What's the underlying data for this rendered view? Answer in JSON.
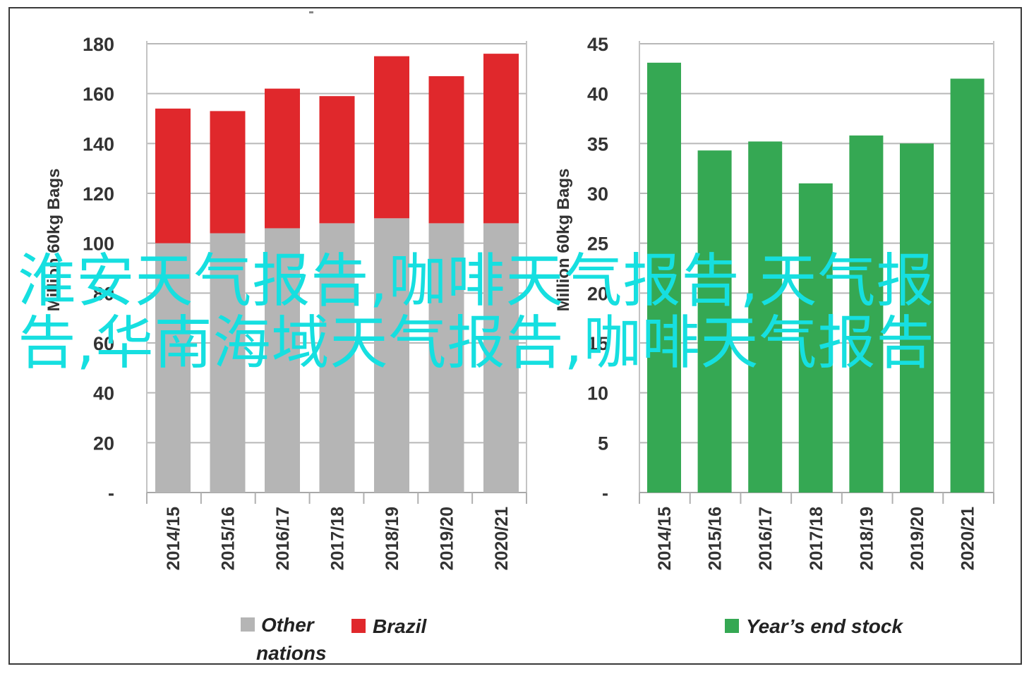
{
  "overlay_text": "淮安天气报告,咖啡天气报告,天气报告,华南海域天气报告,咖啡天气报告",
  "chart_data": [
    {
      "type": "bar",
      "stacked": true,
      "categories": [
        "2014/15",
        "2015/16",
        "2016/17",
        "2017/18",
        "2018/19",
        "2019/20",
        "2020/21"
      ],
      "series": [
        {
          "name": "Other nations",
          "color": "#b5b5b5",
          "values": [
            100,
            104,
            106,
            108,
            110,
            108,
            108
          ]
        },
        {
          "name": "Brazil",
          "color": "#e0282c",
          "values": [
            54,
            49,
            56,
            51,
            65,
            59,
            68
          ]
        }
      ],
      "ylabel": "Million 60kg Bags",
      "ylim": [
        0,
        180
      ],
      "yticks": [
        "-",
        "20",
        "40",
        "60",
        "80",
        "100",
        "120",
        "140",
        "160",
        "180"
      ],
      "grid": true,
      "legend": [
        {
          "label": "Other",
          "label2": "nations",
          "color": "#b5b5b5"
        },
        {
          "label": "Brazil",
          "color": "#e0282c"
        }
      ],
      "legend_position": "bottom"
    },
    {
      "type": "bar",
      "categories": [
        "2014/15",
        "2015/16",
        "2016/17",
        "2017/18",
        "2018/19",
        "2019/20",
        "2020/21"
      ],
      "series": [
        {
          "name": "Year's end stock",
          "color": "#35a853",
          "values": [
            43.1,
            34.3,
            35.2,
            31,
            35.8,
            35,
            41.5
          ]
        }
      ],
      "ylabel": "Million 60kg Bags",
      "ylim": [
        0,
        45
      ],
      "yticks": [
        "-",
        "5",
        "10",
        "15",
        "20",
        "25",
        "30",
        "35",
        "40",
        "45"
      ],
      "grid": true,
      "legend": [
        {
          "label": "Year’s end stock",
          "color": "#35a853"
        }
      ],
      "legend_position": "bottom"
    }
  ]
}
